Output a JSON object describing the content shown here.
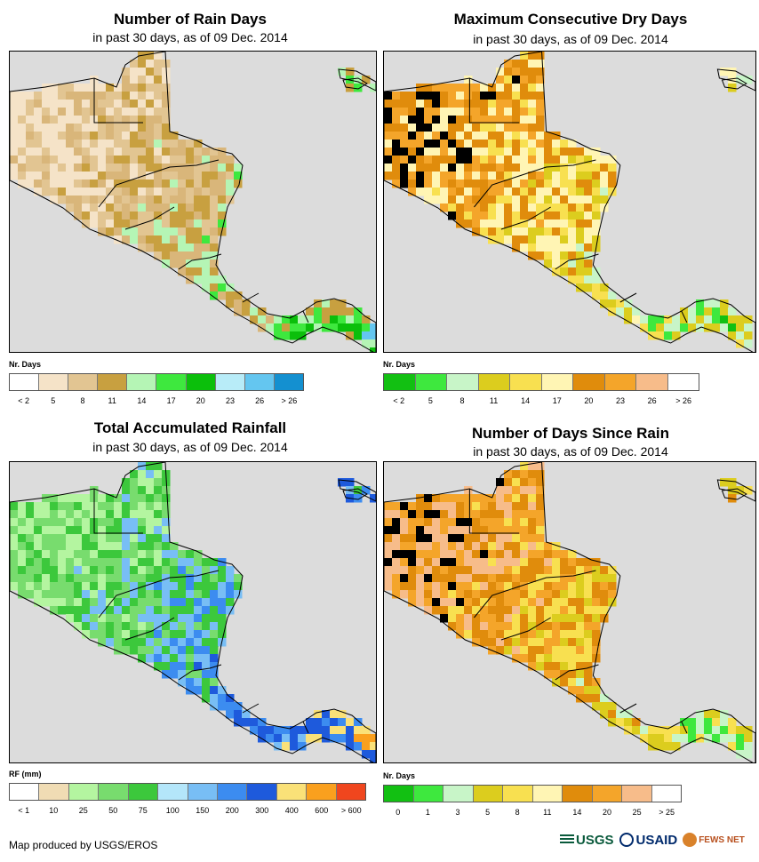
{
  "panels": [
    {
      "title": "Number of Rain Days",
      "subtitle": "in past 30 days, as of 09 Dec. 2014",
      "legend_unit": "Nr. Days",
      "legend_colors": [
        "#ffffff",
        "#f5e3c8",
        "#e2c592",
        "#c8a040",
        "#b5f5b5",
        "#3ee83e",
        "#0bbf0b",
        "#b8ecf8",
        "#64c6f0",
        "#1490d0"
      ],
      "legend_labels": [
        "< 2",
        "5",
        "8",
        "11",
        "14",
        "17",
        "20",
        "23",
        "26",
        "> 26"
      ],
      "palette": [
        "#f5e3c8",
        "#e2c592",
        "#d9b67a",
        "#c8a040",
        "#b5f5b5",
        "#3ee83e",
        "#0bbf0b",
        "#64c6f0"
      ]
    },
    {
      "title": "Maximum Consecutive Dry Days",
      "subtitle": "in past 30 days, as of 09 Dec. 2014",
      "legend_unit": "Nr. Days",
      "legend_colors": [
        "#12c012",
        "#3ee83e",
        "#c8f5c8",
        "#dccd1e",
        "#f8e050",
        "#fff5b4",
        "#e08c0c",
        "#f4a52a",
        "#f7bc8a",
        "#ffffff"
      ],
      "legend_labels": [
        "< 2",
        "5",
        "8",
        "11",
        "14",
        "17",
        "20",
        "23",
        "26",
        "> 26"
      ],
      "palette": [
        "#12c012",
        "#3ee83e",
        "#c8f5c8",
        "#dccd1e",
        "#f8e050",
        "#fff5b4",
        "#e08c0c",
        "#f4a52a"
      ]
    },
    {
      "title": "Total Accumulated Rainfall",
      "subtitle": "in past 30 days, as of 09 Dec. 2014",
      "legend_unit": "RF (mm)",
      "legend_colors": [
        "#ffffff",
        "#f0dcb4",
        "#b4f5a0",
        "#78dc6e",
        "#3cc83c",
        "#b4e6fa",
        "#78bef5",
        "#3c8cf0",
        "#1e5adc",
        "#fae178",
        "#faa01e",
        "#f0461e"
      ],
      "legend_labels": [
        "< 1",
        "10",
        "25",
        "50",
        "75",
        "100",
        "150",
        "200",
        "300",
        "400",
        "600",
        "> 600"
      ],
      "palette": [
        "#b4f5a0",
        "#78dc6e",
        "#3cc83c",
        "#78bef5",
        "#3c8cf0",
        "#1e5adc",
        "#fae178",
        "#faa01e"
      ]
    },
    {
      "title": "Number of Days Since Rain",
      "subtitle": "in past 30 days, as of 09 Dec. 2014",
      "legend_unit": "Nr. Days",
      "legend_colors": [
        "#12c012",
        "#3ee83e",
        "#c8f5c8",
        "#dccd1e",
        "#f8e050",
        "#fff5b4",
        "#e08c0c",
        "#f4a52a",
        "#f7bc8a",
        "#ffffff"
      ],
      "legend_labels": [
        "0",
        "1",
        "3",
        "5",
        "8",
        "11",
        "14",
        "20",
        "25",
        "> 25"
      ],
      "palette": [
        "#12c012",
        "#3ee83e",
        "#c8f5c8",
        "#dccd1e",
        "#f8e050",
        "#e08c0c",
        "#f4a52a",
        "#f7bc8a"
      ]
    }
  ],
  "credit": "Map produced by USGS/EROS",
  "logos": [
    "USGS",
    "USAID",
    "FEWS NET"
  ]
}
